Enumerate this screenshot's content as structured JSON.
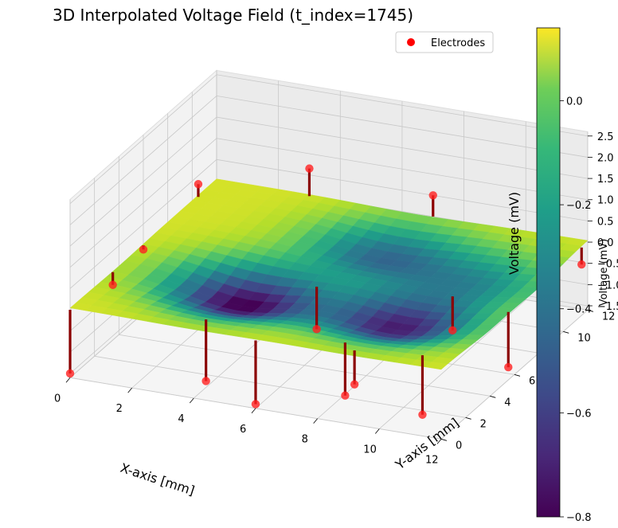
{
  "chart_data": {
    "type": "surface3d",
    "title": "3D Interpolated Voltage Field (t_index=1745)",
    "xlabel": "X-axis [mm]",
    "ylabel": "Y-axis [mm]",
    "zlabel": "Voltage (mV)",
    "xlim": [
      0,
      12
    ],
    "ylim": [
      0,
      12
    ],
    "zlim": [
      -1.6,
      2.6
    ],
    "x_ticks": [
      "0",
      "2",
      "4",
      "6",
      "8",
      "10",
      "12"
    ],
    "y_ticks": [
      "0",
      "2",
      "4",
      "6",
      "8",
      "10",
      "12"
    ],
    "z_ticks": [
      "−1.5",
      "−1.0",
      "−0.5",
      "0.0",
      "0.5",
      "1.0",
      "1.5",
      "2.0",
      "2.5"
    ],
    "colormap": "viridis",
    "colorbar": {
      "label": "Voltage (mV)",
      "range": [
        -0.8,
        0.14
      ],
      "ticks": [
        "0.0",
        "−0.2",
        "−0.4",
        "−0.6",
        "−0.8"
      ]
    },
    "legend": {
      "label": "Electrodes",
      "color": "#ff0000",
      "placement": "top-right"
    },
    "surface_minima": [
      {
        "x": 4,
        "y": 4,
        "v": -0.8
      },
      {
        "x": 9,
        "y": 4,
        "v": -0.7
      },
      {
        "x": 6.5,
        "y": 9,
        "v": -0.45
      },
      {
        "x": 10,
        "y": 8,
        "v": -0.3
      }
    ],
    "electrodes": [
      {
        "x": 0,
        "y": 0,
        "v": -1.5
      },
      {
        "x": 4,
        "y": 1,
        "v": -1.45
      },
      {
        "x": 6,
        "y": 0,
        "v": -1.5
      },
      {
        "x": 9,
        "y": 0.5,
        "v": -0.8
      },
      {
        "x": 11,
        "y": 1,
        "v": -1.4
      },
      {
        "x": 12,
        "y": 5.5,
        "v": -1.3
      },
      {
        "x": 12,
        "y": 11.5,
        "v": -0.4
      },
      {
        "x": 11,
        "y": 11,
        "v": 2.7
      },
      {
        "x": 7,
        "y": 12,
        "v": 0.5
      },
      {
        "x": 3,
        "y": 12,
        "v": 0.65
      },
      {
        "x": 0,
        "y": 10.5,
        "v": 0.3
      },
      {
        "x": 0,
        "y": 6,
        "v": -0.1
      },
      {
        "x": 0,
        "y": 3.5,
        "v": -0.3
      },
      {
        "x": 6,
        "y": 5,
        "v": -1.0
      },
      {
        "x": 10,
        "y": 6,
        "v": -0.8
      },
      {
        "x": 8.5,
        "y": 1,
        "v": -1.25
      }
    ]
  }
}
